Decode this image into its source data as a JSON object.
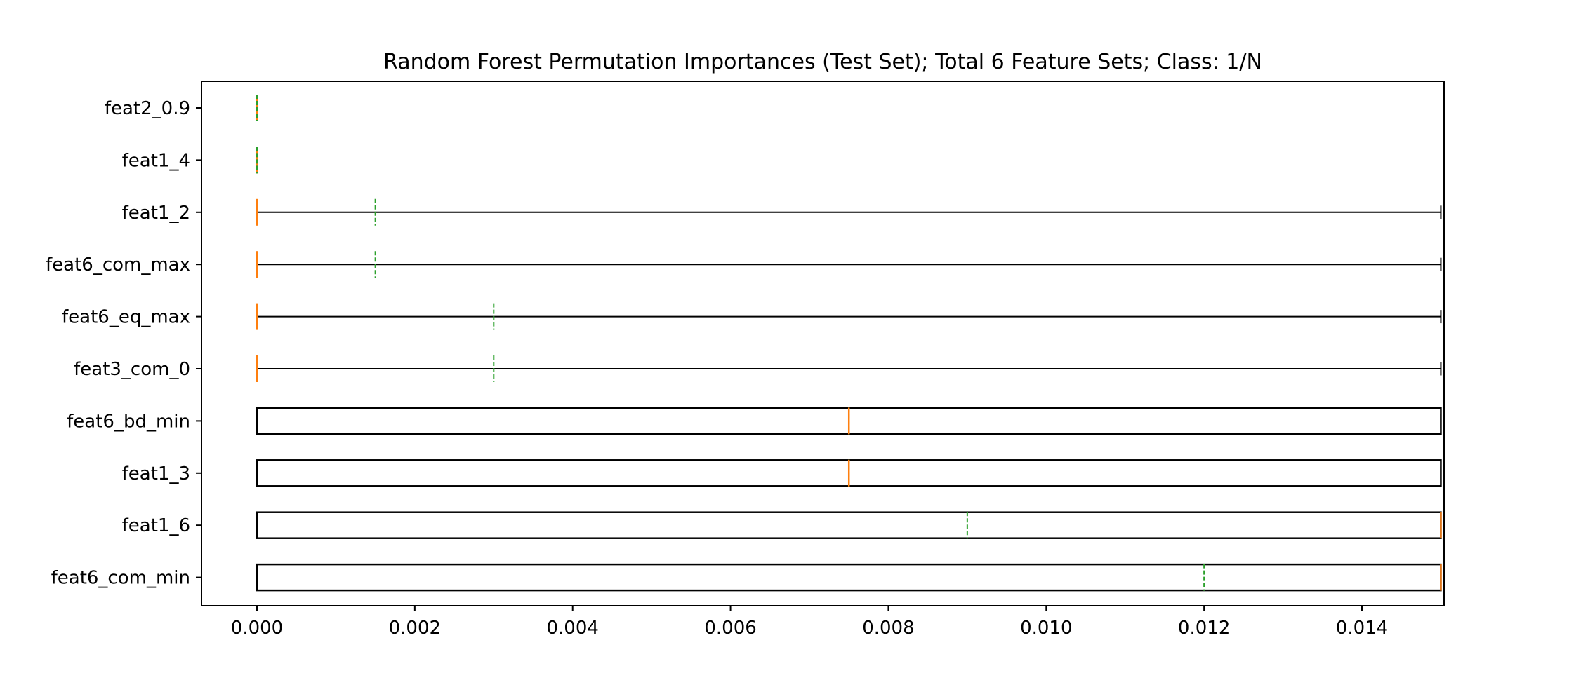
{
  "chart_data": {
    "type": "boxplot",
    "orientation": "horizontal",
    "title": "Random Forest Permutation Importances (Test Set); Total 6 Feature Sets; Class: 1/N",
    "xlabel": "",
    "ylabel": "",
    "xlim": [
      -0.00075,
      0.0157
    ],
    "x_ticks": [
      0.0,
      0.002,
      0.004,
      0.006,
      0.008,
      0.01,
      0.012,
      0.014
    ],
    "x_tick_labels": [
      "0.000",
      "0.002",
      "0.004",
      "0.006",
      "0.008",
      "0.010",
      "0.012",
      "0.014"
    ],
    "grid": false,
    "median_color": "#ff7f0e",
    "mean_color": "#2ca02c",
    "mean_style": "dashed",
    "box_color": "#000000",
    "boxes": [
      {
        "label": "feat6_com_min",
        "whisker_low": 0.0,
        "q1": 0.0,
        "median": 0.015,
        "q3": 0.015,
        "whisker_high": 0.015,
        "mean": 0.012
      },
      {
        "label": "feat1_6",
        "whisker_low": 0.0,
        "q1": 0.0,
        "median": 0.015,
        "q3": 0.015,
        "whisker_high": 0.015,
        "mean": 0.009
      },
      {
        "label": "feat1_3",
        "whisker_low": 0.0,
        "q1": 0.0,
        "median": 0.0075,
        "q3": 0.015,
        "whisker_high": 0.015,
        "mean": 0.0075
      },
      {
        "label": "feat6_bd_min",
        "whisker_low": 0.0,
        "q1": 0.0,
        "median": 0.0075,
        "q3": 0.015,
        "whisker_high": 0.015,
        "mean": 0.0075
      },
      {
        "label": "feat3_com_0",
        "whisker_low": 0.0,
        "q1": 0.0,
        "median": 0.0,
        "q3": 0.0,
        "whisker_high": 0.015,
        "mean": 0.003
      },
      {
        "label": "feat6_eq_max",
        "whisker_low": 0.0,
        "q1": 0.0,
        "median": 0.0,
        "q3": 0.0,
        "whisker_high": 0.015,
        "mean": 0.003
      },
      {
        "label": "feat6_com_max",
        "whisker_low": 0.0,
        "q1": 0.0,
        "median": 0.0,
        "q3": 0.0,
        "whisker_high": 0.015,
        "mean": 0.0015
      },
      {
        "label": "feat1_2",
        "whisker_low": 0.0,
        "q1": 0.0,
        "median": 0.0,
        "q3": 0.0,
        "whisker_high": 0.015,
        "mean": 0.0015
      },
      {
        "label": "feat1_4",
        "whisker_low": 0.0,
        "q1": 0.0,
        "median": 0.0,
        "q3": 0.0,
        "whisker_high": 0.0,
        "mean": 0.0
      },
      {
        "label": "feat2_0.9",
        "whisker_low": 0.0,
        "q1": 0.0,
        "median": 0.0,
        "q3": 0.0,
        "whisker_high": 0.0,
        "mean": 0.0
      }
    ]
  }
}
